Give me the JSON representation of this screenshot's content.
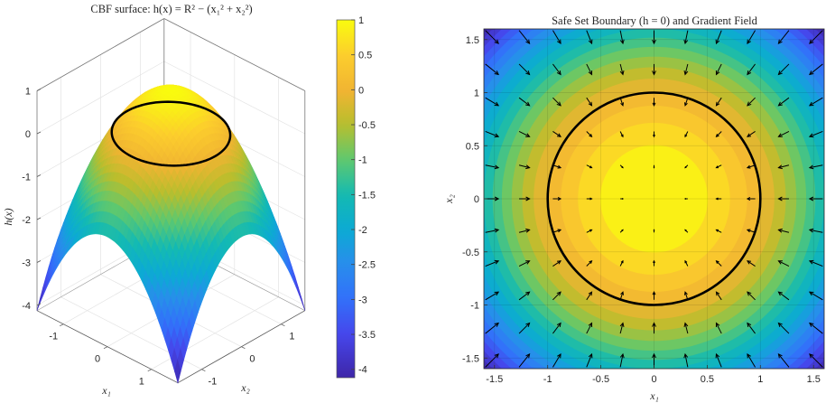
{
  "chart_data": [
    {
      "type": "surface",
      "title": "CBF surface: h(x) = R² − (x₁² + x₂²)",
      "xlabel": "x₁",
      "ylabel": "x₂",
      "zlabel": "h(x)",
      "function": "h = R^2 - (x1^2 + x2^2)",
      "R": 1,
      "xlim": [
        -1.6,
        1.6
      ],
      "ylim": [
        -1.6,
        1.6
      ],
      "zlim": [
        -4.12,
        1
      ],
      "xticks": [
        "-1",
        "0",
        "1"
      ],
      "yticks": [
        "-1",
        "0",
        "1"
      ],
      "zticks": [
        "1",
        "0",
        "-1",
        "-2",
        "-3",
        "-4"
      ],
      "grid": true,
      "overlay": {
        "type": "circle",
        "level": 0,
        "radius": 1,
        "color": "#000000"
      },
      "colormap": "parula",
      "colorbar": {
        "limits": [
          -4.12,
          1
        ],
        "ticks": [
          "1",
          "0.5",
          "0",
          "-0.5",
          "-1",
          "-1.5",
          "-2",
          "-2.5",
          "-3",
          "-3.5",
          "-4"
        ],
        "position": "right"
      }
    },
    {
      "type": "contour_quiver",
      "title": "Safe Set Boundary (h = 0) and Gradient Field",
      "xlabel": "x₁",
      "ylabel": "x₂",
      "xlim": [
        -1.6,
        1.6
      ],
      "ylim": [
        -1.6,
        1.6
      ],
      "xticks": [
        "-1.5",
        "-1",
        "-0.5",
        "0",
        "0.5",
        "1",
        "1.5"
      ],
      "yticks": [
        "1.5",
        "1",
        "0.5",
        "0",
        "-0.5",
        "-1",
        "-1.5"
      ],
      "grid": true,
      "contour_levels": 20,
      "color_limits": [
        -4.12,
        1
      ],
      "quiver": {
        "field": "grad h = (-2 x1, -2 x2)",
        "grid_start": -1.5,
        "grid_end": 1.5,
        "grid_step": 0.3,
        "color": "#000000"
      },
      "boundary": {
        "level": 0,
        "radius": 1,
        "color": "#000000"
      }
    }
  ]
}
